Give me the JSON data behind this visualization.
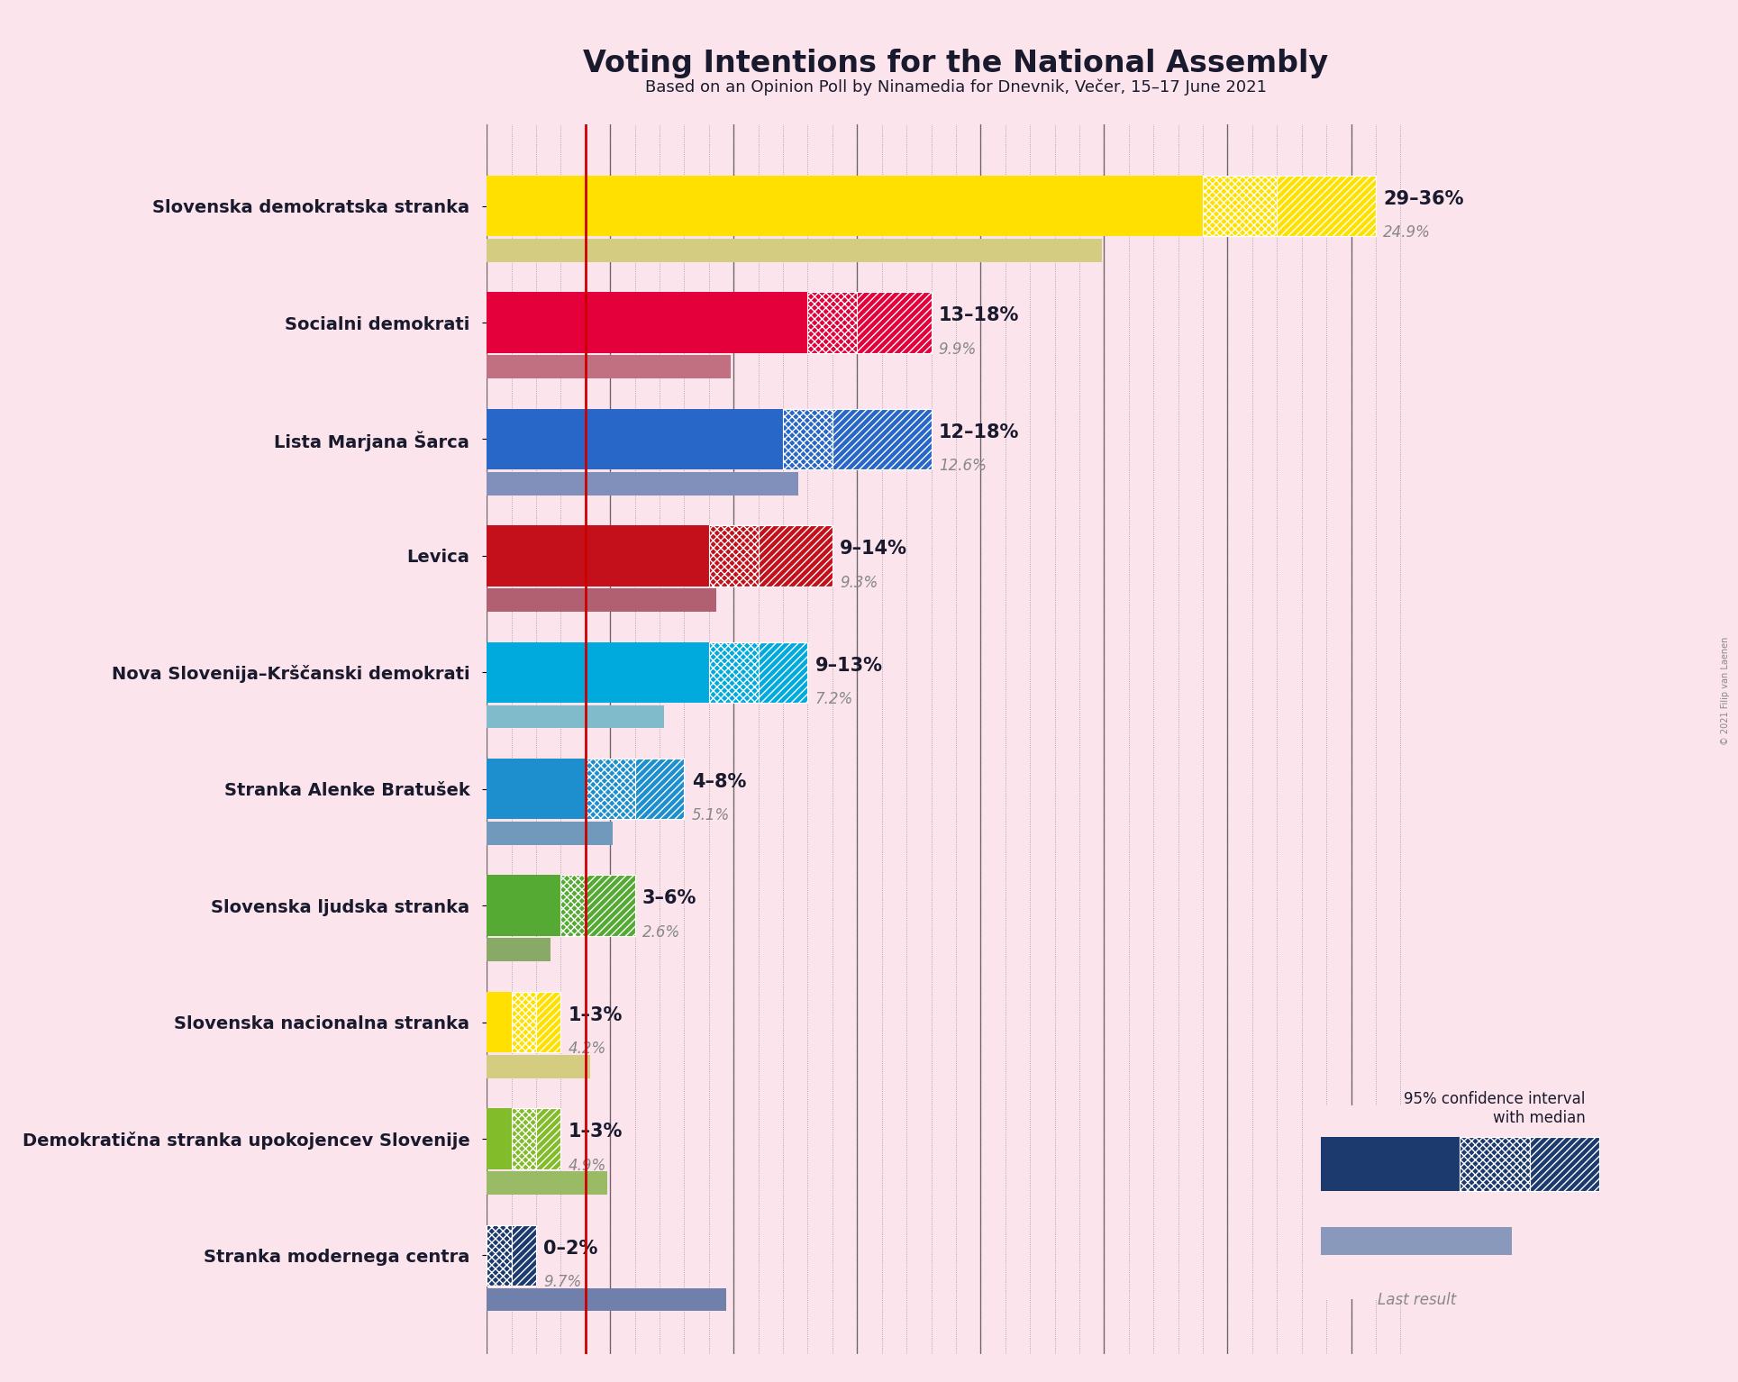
{
  "title": "Voting Intentions for the National Assembly",
  "subtitle": "Based on an Opinion Poll by Ninamedia for Dnevnik, Večer, 15–17 June 2021",
  "copyright": "© 2021 Filip van Laenen",
  "background_color": "#fce4ec",
  "parties": [
    {
      "name": "Slovenska demokratska stranka",
      "ci_low": 29,
      "ci_high": 36,
      "median": 32,
      "last": 24.9,
      "color": "#FFE000",
      "last_color": "#d4cc80",
      "label": "29–36%",
      "last_label": "24.9%"
    },
    {
      "name": "Socialni demokrati",
      "ci_low": 13,
      "ci_high": 18,
      "median": 15,
      "last": 9.9,
      "color": "#E4003A",
      "last_color": "#c07080",
      "label": "13–18%",
      "last_label": "9.9%"
    },
    {
      "name": "Lista Marjana Šarca",
      "ci_low": 12,
      "ci_high": 18,
      "median": 14,
      "last": 12.6,
      "color": "#2866C7",
      "last_color": "#8090bb",
      "label": "12–18%",
      "last_label": "12.6%"
    },
    {
      "name": "Levica",
      "ci_low": 9,
      "ci_high": 14,
      "median": 11,
      "last": 9.3,
      "color": "#C4101A",
      "last_color": "#b06070",
      "label": "9–14%",
      "last_label": "9.3%"
    },
    {
      "name": "Nova Slovenija–Krščanski demokrati",
      "ci_low": 9,
      "ci_high": 13,
      "median": 11,
      "last": 7.2,
      "color": "#00AADD",
      "last_color": "#80bbcc",
      "label": "9–13%",
      "last_label": "7.2%"
    },
    {
      "name": "Stranka Alenke Bratušek",
      "ci_low": 4,
      "ci_high": 8,
      "median": 6,
      "last": 5.1,
      "color": "#1D8FCE",
      "last_color": "#7099bb",
      "label": "4–8%",
      "last_label": "5.1%"
    },
    {
      "name": "Slovenska ljudska stranka",
      "ci_low": 3,
      "ci_high": 6,
      "median": 4,
      "last": 2.6,
      "color": "#55AA33",
      "last_color": "#88aa66",
      "label": "3–6%",
      "last_label": "2.6%"
    },
    {
      "name": "Slovenska nacionalna stranka",
      "ci_low": 1,
      "ci_high": 3,
      "median": 2,
      "last": 4.2,
      "color": "#FFE000",
      "last_color": "#d4cc80",
      "label": "1–3%",
      "last_label": "4.2%"
    },
    {
      "name": "Demokratična stranka upokojencev Slovenije",
      "ci_low": 1,
      "ci_high": 3,
      "median": 2,
      "last": 4.9,
      "color": "#83BC2B",
      "last_color": "#99bb66",
      "label": "1–3%",
      "last_label": "4.9%"
    },
    {
      "name": "Stranka modernega centra",
      "ci_low": 0,
      "ci_high": 2,
      "median": 1,
      "last": 9.7,
      "color": "#1D3A6E",
      "last_color": "#7080aa",
      "label": "0–2%",
      "last_label": "9.7%"
    }
  ],
  "xmax": 38,
  "threshold_line": 4,
  "threshold_color": "#CC0000",
  "legend_bar_color": "#1D3A6E",
  "legend_last_color": "#8899bb"
}
